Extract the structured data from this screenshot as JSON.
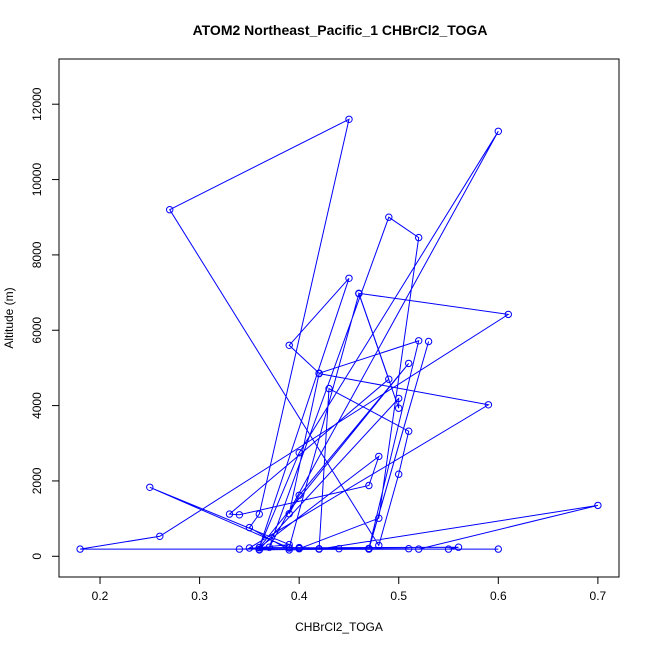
{
  "chart_data": {
    "type": "line",
    "title": "ATOM2 Northeast_Pacific_1 CHBrCl2_TOGA",
    "xlabel": "CHBrCl2_TOGA",
    "ylabel": "Altitude (m)",
    "xlim": [
      0.18,
      0.7
    ],
    "ylim": [
      0,
      12000
    ],
    "x_ticks": [
      0.2,
      0.3,
      0.4,
      0.5,
      0.6,
      0.7
    ],
    "x_tick_labels": [
      "0.2",
      "0.3",
      "0.4",
      "0.5",
      "0.6",
      "0.7"
    ],
    "y_ticks": [
      0,
      2000,
      4000,
      6000,
      8000,
      10000,
      12000
    ],
    "y_tick_labels": [
      "0",
      "2000",
      "4000",
      "6000",
      "8000",
      "10000",
      "12000"
    ],
    "grid": false,
    "series": [
      {
        "color": "#0000ff",
        "points": [
          [
            0.6,
            190
          ],
          [
            0.18,
            190
          ],
          [
            0.26,
            530
          ],
          [
            0.61,
            6420
          ],
          [
            0.46,
            6980
          ],
          [
            0.49,
            4700
          ],
          [
            0.33,
            1120
          ],
          [
            0.34,
            1100
          ],
          [
            0.47,
            1880
          ],
          [
            0.48,
            2650
          ],
          [
            0.36,
            230
          ],
          [
            0.45,
            7380
          ],
          [
            0.39,
            5600
          ],
          [
            0.42,
            4860
          ],
          [
            0.52,
            5720
          ],
          [
            0.47,
            210
          ],
          [
            0.39,
            220
          ],
          [
            0.25,
            1830
          ],
          [
            0.39,
            310
          ],
          [
            0.36,
            230
          ],
          [
            0.4,
            2750
          ],
          [
            0.6,
            11280
          ],
          [
            0.37,
            240
          ],
          [
            0.49,
            9000
          ],
          [
            0.52,
            8460
          ],
          [
            0.48,
            1010
          ],
          [
            0.4,
            200
          ],
          [
            0.42,
            200
          ],
          [
            0.43,
            4450
          ],
          [
            0.51,
            3320
          ],
          [
            0.5,
            2180
          ],
          [
            0.48,
            290
          ],
          [
            0.27,
            9200
          ],
          [
            0.45,
            11600
          ],
          [
            0.36,
            1120
          ],
          [
            0.35,
            760
          ],
          [
            0.39,
            170
          ],
          [
            0.44,
            200
          ],
          [
            0.55,
            190
          ],
          [
            0.56,
            240
          ],
          [
            0.35,
            220
          ],
          [
            0.59,
            4020
          ],
          [
            0.42,
            4850
          ],
          [
            0.39,
            1130
          ],
          [
            0.4,
            1620
          ],
          [
            0.51,
            5120
          ],
          [
            0.36,
            230
          ],
          [
            0.4,
            230
          ],
          [
            0.47,
            190
          ],
          [
            0.53,
            5700
          ],
          [
            0.47,
            200
          ],
          [
            0.4,
            210
          ],
          [
            0.51,
            200
          ],
          [
            0.34,
            190
          ],
          [
            0.39,
            230
          ],
          [
            0.46,
            6970
          ],
          [
            0.5,
            3930
          ],
          [
            0.5,
            4190
          ],
          [
            0.36,
            180
          ],
          [
            0.52,
            190
          ],
          [
            0.7,
            1350
          ],
          [
            0.42,
            190
          ],
          [
            0.36,
            170
          ]
        ]
      }
    ]
  }
}
